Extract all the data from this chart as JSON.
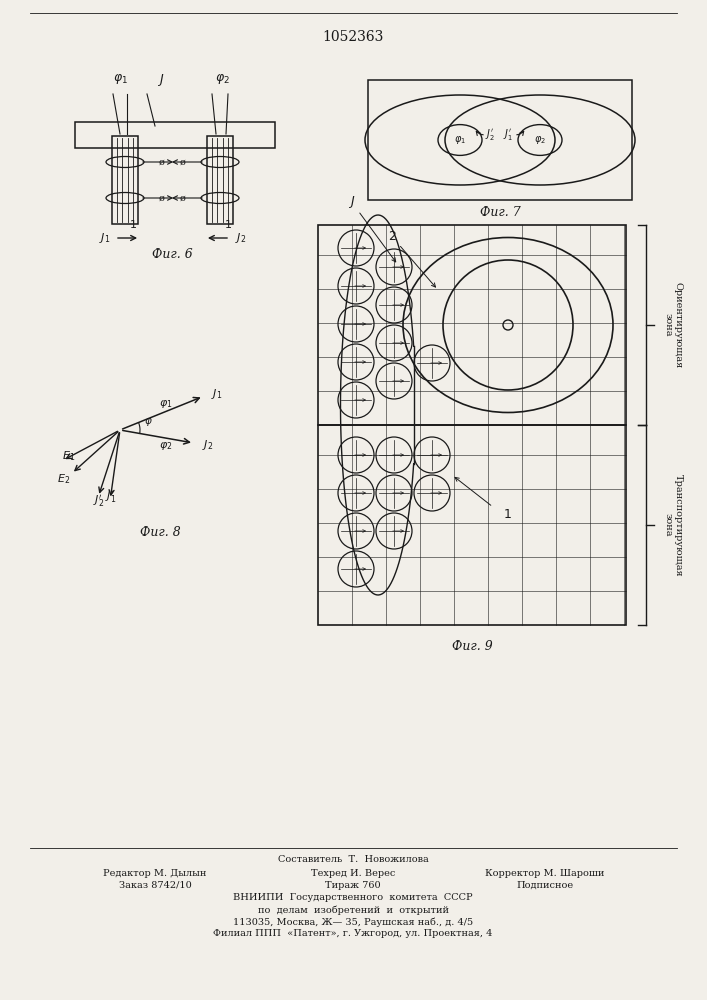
{
  "title": "1052363",
  "background_color": "#f2efe9",
  "fig6_caption": "Фиг. 6",
  "fig7_caption": "Фиг. 7",
  "fig8_caption": "Фиг. 8",
  "fig9_caption": "Фиг. 9",
  "footer_line0": "Составитель  Т.  Новожилова",
  "footer_line1a": "Редактор М. Дылын",
  "footer_line1b": "Техред И. Верес",
  "footer_line1c": "Корректор М. Шароши",
  "footer_line2a": "Заказ 8742/10",
  "footer_line2b": "Тираж 760",
  "footer_line2c": "Подписное",
  "footer_line3": "ВНИИПИ  Государственного  комитета  СССР",
  "footer_line4": "по  делам  изобретений  и  открытий",
  "footer_line5": "113035, Москва, Ж— 35, Раушская наб., д. 4/5",
  "footer_line6": "Филиал ППП  «Патент», г. Ужгород, ул. Проектная, 4"
}
